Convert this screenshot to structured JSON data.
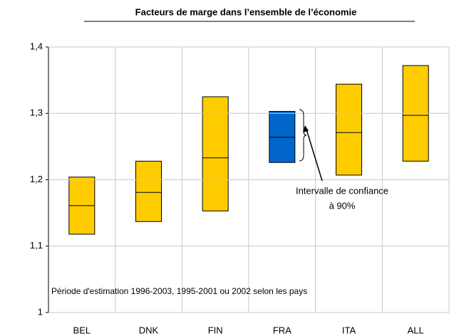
{
  "chart_data": {
    "type": "range",
    "title": "Facteurs de marge dans l’ensemble de l’économie",
    "categories": [
      "BEL",
      "DNK",
      "FIN",
      "FRA",
      "ITA",
      "ALL"
    ],
    "low": [
      1.118,
      1.137,
      1.153,
      1.226,
      1.207,
      1.228
    ],
    "mid": [
      1.161,
      1.181,
      1.233,
      1.264,
      1.271,
      1.297
    ],
    "high": [
      1.204,
      1.228,
      1.325,
      1.303,
      1.344,
      1.372
    ],
    "colors": [
      "#ffcc00",
      "#ffcc00",
      "#ffcc00",
      "#0066cc",
      "#ffcc00",
      "#ffcc00"
    ],
    "ylim": [
      1,
      1.4
    ],
    "yticks": [
      1,
      {
        "value": 1.1,
        "label": "1,1"
      },
      {
        "value": 1.2,
        "label": "1,2"
      },
      {
        "value": 1.3,
        "label": "1,3"
      },
      {
        "value": 1.4,
        "label": "1,4"
      }
    ],
    "grid": true,
    "annotations": [
      "Intervalle de confiance",
      "à 90%"
    ],
    "note": "Période d'estimation 1996-2003, 1995-2001 ou 2002 selon les pays"
  }
}
